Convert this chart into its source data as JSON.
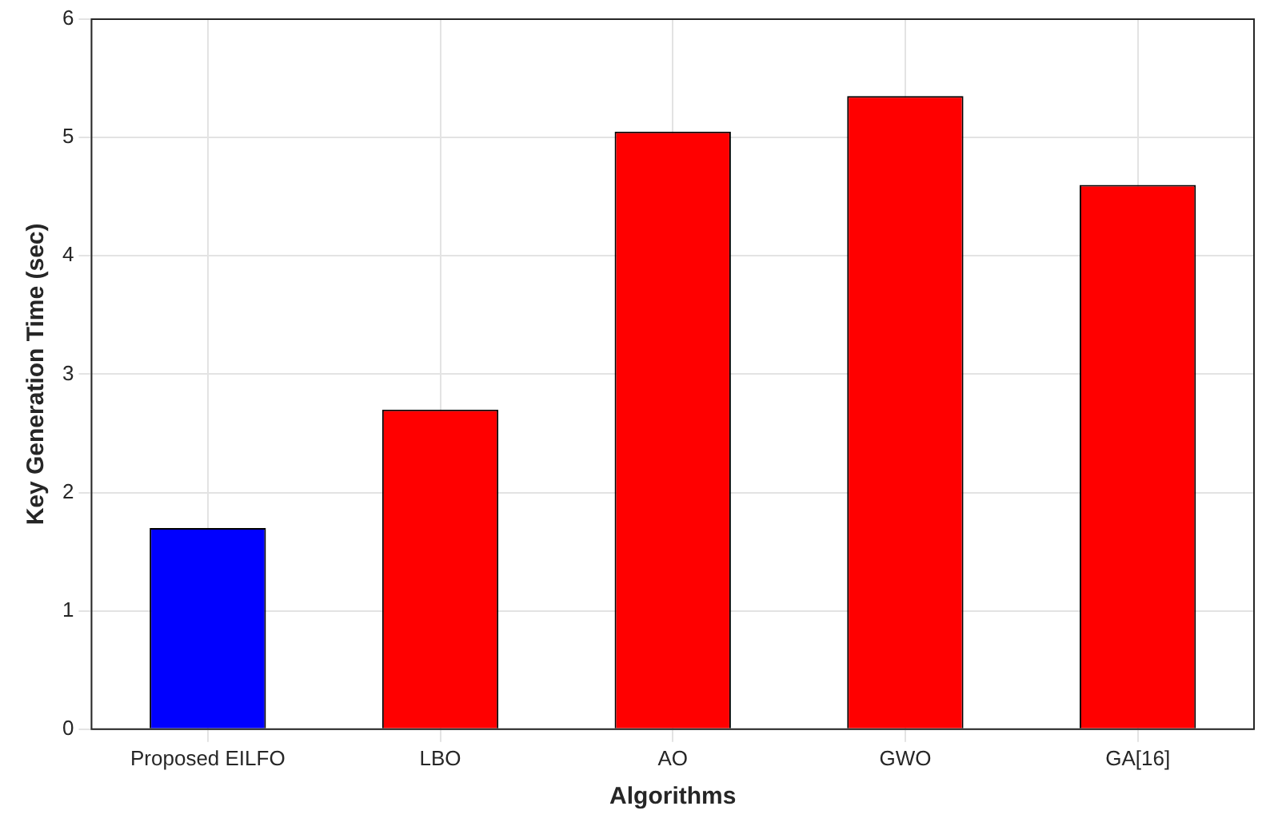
{
  "chart_data": {
    "type": "bar",
    "xlabel": "Algorithms",
    "ylabel": "Key Generation Time (sec)",
    "categories": [
      "Proposed EILFO",
      "LBO",
      "AO",
      "GWO",
      "GA[16]"
    ],
    "values": [
      1.7,
      2.7,
      5.05,
      5.35,
      4.6
    ],
    "colors": [
      "#0000ff",
      "#ff0000",
      "#ff0000",
      "#ff0000",
      "#ff0000"
    ],
    "ylim": [
      0,
      6
    ],
    "yticks": [
      0,
      1,
      2,
      3,
      4,
      5,
      6
    ],
    "grid": true
  }
}
